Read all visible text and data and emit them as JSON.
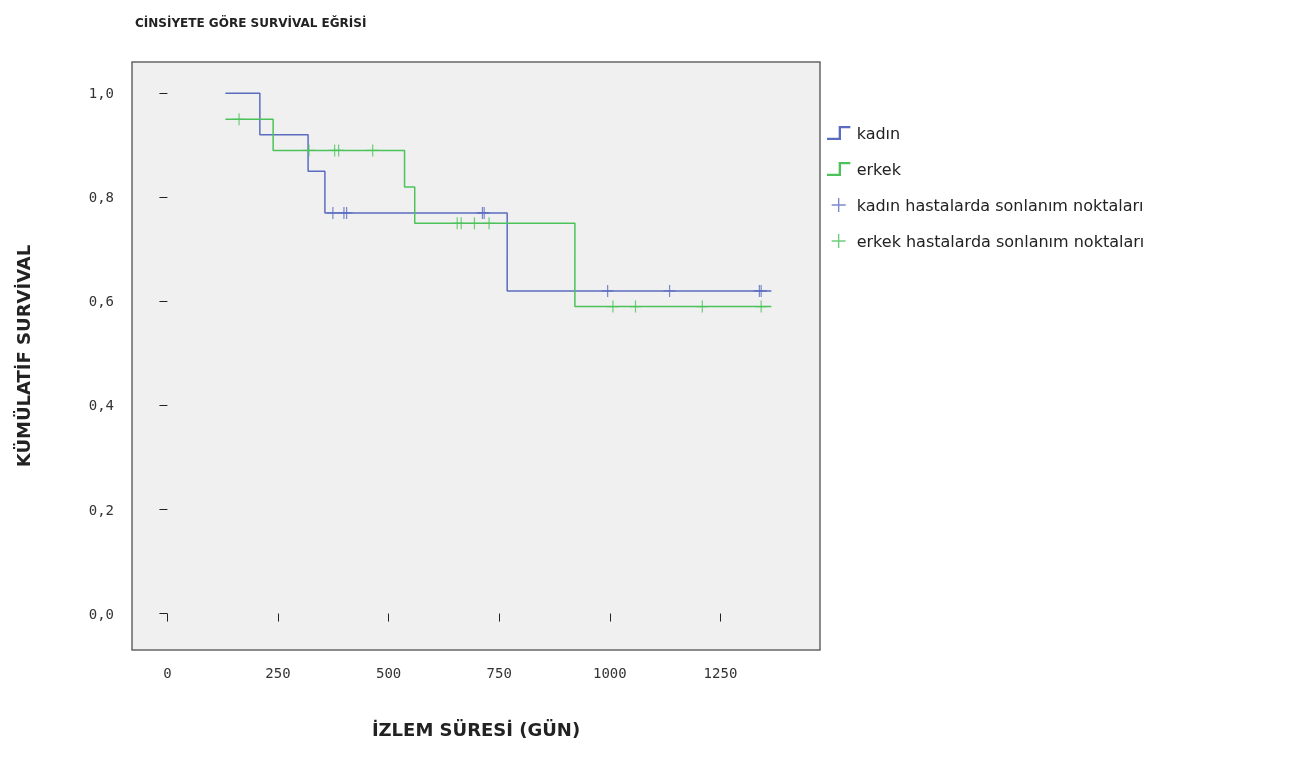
{
  "chart_data": {
    "type": "step",
    "title": "CİNSİYETE GÖRE SURVİVAL EĞRİSİ",
    "xlabel": "İZLEM SÜRESİ (GÜN)",
    "ylabel": "KÜMÜLATİF SURVİVAL",
    "xlim": [
      -80,
      1475
    ],
    "xticks": [
      0,
      250,
      500,
      750,
      1000,
      1250
    ],
    "ylim": [
      -0.07,
      1.06
    ],
    "yticks": [
      {
        "value": 0,
        "label": "0,0"
      },
      {
        "value": 0.2,
        "label": "0,2"
      },
      {
        "value": 0.4,
        "label": "0,4"
      },
      {
        "value": 0.6,
        "label": "0,6"
      },
      {
        "value": 0.8,
        "label": "0,8"
      },
      {
        "value": 1,
        "label": "1,0"
      }
    ],
    "grid": false,
    "legend": "right",
    "series": [
      {
        "name": "kadın",
        "color": "#5a6cc0",
        "x": [
          131,
          209,
          318,
          356,
          768,
          1365
        ],
        "values": [
          1.0,
          0.92,
          0.85,
          0.77,
          0.62,
          0.62
        ]
      },
      {
        "name": "erkek",
        "color": "#4cc35a",
        "x": [
          131,
          239,
          536,
          559,
          921,
          1365
        ],
        "values": [
          0.95,
          0.89,
          0.82,
          0.75,
          0.59,
          0.59
        ]
      },
      {
        "name": "kadın hastalarda sonlanım noktaları",
        "type": "scatter",
        "marker": "cross",
        "color": "#5a6cc0",
        "x": [
          374,
          399,
          405,
          712,
          716,
          995,
          1135,
          1338,
          1342
        ],
        "values": [
          0.77,
          0.77,
          0.77,
          0.77,
          0.77,
          0.62,
          0.62,
          0.62,
          0.62
        ]
      },
      {
        "name": "erkek hastalarda sonlanım noktaları",
        "type": "scatter",
        "marker": "cross",
        "color": "#4cc35a",
        "x": [
          162,
          320,
          378,
          387,
          464,
          655,
          664,
          694,
          727,
          1007,
          1058,
          1209,
          1342
        ],
        "values": [
          0.95,
          0.89,
          0.89,
          0.89,
          0.89,
          0.75,
          0.75,
          0.75,
          0.75,
          0.59,
          0.59,
          0.59,
          0.59
        ]
      }
    ]
  }
}
